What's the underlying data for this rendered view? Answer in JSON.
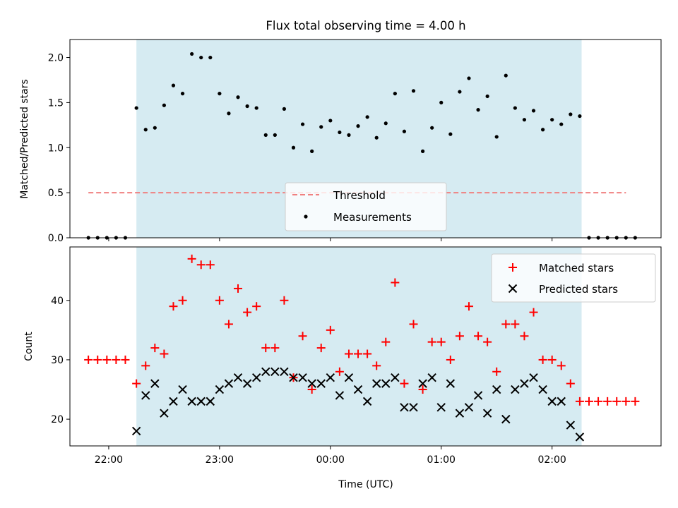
{
  "chart_data": [
    {
      "type": "scatter",
      "title": "Flux total observing time = 4.00 h",
      "ylabel": "Matched/Predicted stars",
      "xlabel": "",
      "ylim": [
        0.0,
        2.2
      ],
      "yticks": [
        "0.0",
        "0.5",
        "1.0",
        "1.5",
        "2.0"
      ],
      "xlim": [
        "21:39",
        "02:59"
      ],
      "shaded_span": [
        "22:15",
        "02:16"
      ],
      "shade_color": "#add8e6",
      "legend_position": "lower-center",
      "threshold": {
        "name": "Threshold",
        "value": 0.5,
        "x_range": [
          "21:49",
          "02:40"
        ],
        "color": "#f08080"
      },
      "measurements": {
        "name": "Measurements",
        "color": "#000000",
        "x": [
          "21:49",
          "21:54",
          "21:59",
          "22:04",
          "22:09",
          "22:15",
          "22:20",
          "22:25",
          "22:30",
          "22:35",
          "22:40",
          "22:45",
          "22:50",
          "22:55",
          "23:00",
          "23:05",
          "23:10",
          "23:15",
          "23:20",
          "23:25",
          "23:30",
          "23:35",
          "23:40",
          "23:45",
          "23:50",
          "23:55",
          "00:00",
          "00:05",
          "00:10",
          "00:15",
          "00:20",
          "00:25",
          "00:30",
          "00:35",
          "00:40",
          "00:45",
          "00:50",
          "00:55",
          "01:00",
          "01:05",
          "01:10",
          "01:15",
          "01:20",
          "01:25",
          "01:30",
          "01:35",
          "01:40",
          "01:45",
          "01:50",
          "01:55",
          "02:00",
          "02:05",
          "02:10",
          "02:15",
          "02:20",
          "02:25",
          "02:30",
          "02:35",
          "02:40",
          "02:45"
        ],
        "y": [
          0,
          0,
          0,
          0,
          0,
          1.44,
          1.2,
          1.22,
          1.47,
          1.69,
          1.6,
          2.04,
          2.0,
          2.0,
          1.6,
          1.38,
          1.56,
          1.46,
          1.44,
          1.14,
          1.14,
          1.43,
          1.0,
          1.26,
          0.96,
          1.23,
          1.3,
          1.17,
          1.14,
          1.24,
          1.34,
          1.11,
          1.27,
          1.6,
          1.18,
          1.63,
          0.96,
          1.22,
          1.5,
          1.15,
          1.62,
          1.77,
          1.42,
          1.57,
          1.12,
          1.8,
          1.44,
          1.31,
          1.41,
          1.2,
          1.31,
          1.26,
          1.37,
          1.35,
          0,
          0,
          0,
          0,
          0,
          0
        ]
      }
    },
    {
      "type": "scatter",
      "title": "",
      "xlabel": "Time (UTC)",
      "ylabel": "Count",
      "ylim": [
        15.5,
        49
      ],
      "yticks": [
        "20",
        "30",
        "40"
      ],
      "xticks": [
        "22:00",
        "23:00",
        "00:00",
        "01:00",
        "02:00"
      ],
      "xlim": [
        "21:39",
        "02:59"
      ],
      "shaded_span": [
        "22:15",
        "02:16"
      ],
      "shade_color": "#add8e6",
      "legend_position": "top-right",
      "series": [
        {
          "name": "Matched stars",
          "marker": "plus",
          "color": "#ff0000",
          "x": [
            "21:49",
            "21:54",
            "21:59",
            "22:04",
            "22:09",
            "22:15",
            "22:20",
            "22:25",
            "22:30",
            "22:35",
            "22:40",
            "22:45",
            "22:50",
            "22:55",
            "23:00",
            "23:05",
            "23:10",
            "23:15",
            "23:20",
            "23:25",
            "23:30",
            "23:35",
            "23:40",
            "23:45",
            "23:50",
            "23:55",
            "00:00",
            "00:05",
            "00:10",
            "00:15",
            "00:20",
            "00:25",
            "00:30",
            "00:35",
            "00:40",
            "00:45",
            "00:50",
            "00:55",
            "01:00",
            "01:05",
            "01:10",
            "01:15",
            "01:20",
            "01:25",
            "01:30",
            "01:35",
            "01:40",
            "01:45",
            "01:50",
            "01:55",
            "02:00",
            "02:05",
            "02:10",
            "02:15",
            "02:20",
            "02:25",
            "02:30",
            "02:35",
            "02:40",
            "02:45"
          ],
          "y": [
            30,
            30,
            30,
            30,
            30,
            26,
            29,
            32,
            31,
            39,
            40,
            47,
            46,
            46,
            40,
            36,
            42,
            38,
            39,
            32,
            32,
            40,
            27,
            34,
            25,
            32,
            35,
            28,
            31,
            31,
            31,
            29,
            33,
            43,
            26,
            36,
            25,
            33,
            33,
            30,
            34,
            39,
            34,
            33,
            28,
            36,
            36,
            34,
            38,
            30,
            30,
            29,
            26,
            23,
            23,
            23,
            23,
            23,
            23,
            23
          ]
        },
        {
          "name": "Predicted stars",
          "marker": "x",
          "color": "#000000",
          "x": [
            "22:15",
            "22:20",
            "22:25",
            "22:30",
            "22:35",
            "22:40",
            "22:45",
            "22:50",
            "22:55",
            "23:00",
            "23:05",
            "23:10",
            "23:15",
            "23:20",
            "23:25",
            "23:30",
            "23:35",
            "23:40",
            "23:45",
            "23:50",
            "23:55",
            "00:00",
            "00:05",
            "00:10",
            "00:15",
            "00:20",
            "00:25",
            "00:30",
            "00:35",
            "00:40",
            "00:45",
            "00:50",
            "00:55",
            "01:00",
            "01:05",
            "01:10",
            "01:15",
            "01:20",
            "01:25",
            "01:30",
            "01:35",
            "01:40",
            "01:45",
            "01:50",
            "01:55",
            "02:00",
            "02:05",
            "02:10",
            "02:15"
          ],
          "y": [
            18,
            24,
            26,
            21,
            23,
            25,
            23,
            23,
            23,
            25,
            26,
            27,
            26,
            27,
            28,
            28,
            28,
            27,
            27,
            26,
            26,
            27,
            24,
            27,
            25,
            23,
            26,
            26,
            27,
            22,
            22,
            26,
            27,
            22,
            26,
            21,
            22,
            24,
            21,
            25,
            20,
            25,
            26,
            27,
            25,
            23,
            23,
            19,
            17
          ]
        }
      ]
    }
  ]
}
